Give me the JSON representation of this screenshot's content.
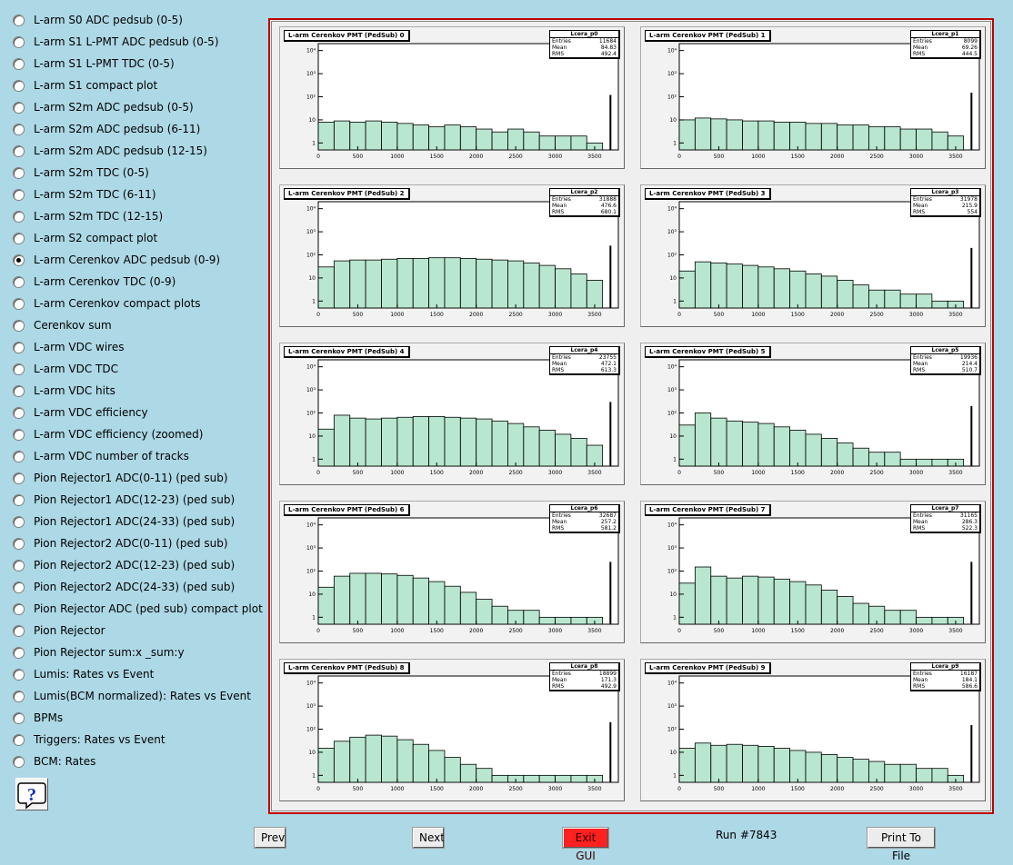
{
  "menu": {
    "selected_index": 11,
    "items": [
      "L-arm S0 ADC pedsub (0-5)",
      "L-arm S1 L-PMT ADC pedsub (0-5)",
      "L-arm S1 L-PMT TDC (0-5)",
      "L-arm S1 compact plot",
      "L-arm S2m ADC pedsub (0-5)",
      "L-arm S2m ADC pedsub (6-11)",
      "L-arm S2m ADC pedsub (12-15)",
      "L-arm S2m TDC (0-5)",
      "L-arm S2m TDC (6-11)",
      "L-arm S2m TDC (12-15)",
      "L-arm S2 compact plot",
      "L-arm Cerenkov ADC pedsub (0-9)",
      "L-arm Cerenkov TDC (0-9)",
      "L-arm Cerenkov compact plots",
      "Cerenkov sum",
      "L-arm VDC wires",
      "L-arm VDC TDC",
      "L-arm VDC hits",
      "L-arm VDC efficiency",
      "L-arm VDC efficiency (zoomed)",
      "L-arm VDC number of tracks",
      "Pion Rejector1 ADC(0-11) (ped sub)",
      "Pion Rejector1 ADC(12-23) (ped sub)",
      "Pion Rejector1 ADC(24-33) (ped sub)",
      "Pion Rejector2 ADC(0-11) (ped sub)",
      "Pion Rejector2 ADC(12-23) (ped sub)",
      "Pion Rejector2 ADC(24-33) (ped sub)",
      "Pion Rejector ADC (ped sub) compact plot",
      "Pion Rejector",
      "Pion Rejector sum:x _sum:y",
      "Lumis: Rates vs Event",
      "Lumis(BCM normalized): Rates vs Event",
      "BPMs",
      "Triggers: Rates vs Event",
      "BCM: Rates"
    ]
  },
  "icons": {
    "help": "help-question-icon"
  },
  "buttons": {
    "prev": "Prev",
    "next": "Next",
    "exit": "Exit GUI",
    "print": "Print To File"
  },
  "run_label": "Run #7843",
  "colors": {
    "canvas_border": "#c00000",
    "exit_button": "#ff2020",
    "fill": "#7fd1a8",
    "background": "#add8e6"
  },
  "chart_data": [
    {
      "type": "bar",
      "title": "L-arm Cerenkov PMT (PedSub) 0",
      "stats_name": "Lcera_p0",
      "stats": {
        "Entries": "11684",
        "Mean": "84.83",
        "RMS": "492.4"
      },
      "x_ticks": [
        0,
        500,
        1000,
        1500,
        2000,
        2500,
        3000,
        3500
      ],
      "y_ticks": [
        "1",
        "10",
        "10²",
        "10³",
        "10⁴"
      ],
      "y_scale": "log",
      "ylim": [
        0.5,
        20000
      ],
      "xlim": [
        0,
        3800
      ],
      "x": [
        100,
        300,
        500,
        700,
        900,
        1100,
        1300,
        1500,
        1700,
        1900,
        2100,
        2300,
        2500,
        2700,
        2900,
        3100,
        3300,
        3500,
        3700
      ],
      "values": [
        8,
        9,
        8,
        9,
        8,
        7,
        6,
        5,
        6,
        5,
        4,
        3,
        4,
        3,
        2,
        2,
        2,
        1,
        120
      ]
    },
    {
      "type": "bar",
      "title": "L-arm Cerenkov PMT (PedSub) 1",
      "stats_name": "Lcera_p1",
      "stats": {
        "Entries": "8099",
        "Mean": "69.26",
        "RMS": "444.5"
      },
      "x_ticks": [
        0,
        500,
        1000,
        1500,
        2000,
        2500,
        3000,
        3500
      ],
      "y_ticks": [
        "1",
        "10",
        "10²",
        "10³",
        "10⁴"
      ],
      "y_scale": "log",
      "ylim": [
        0.5,
        20000
      ],
      "xlim": [
        0,
        3800
      ],
      "x": [
        100,
        300,
        500,
        700,
        900,
        1100,
        1300,
        1500,
        1700,
        1900,
        2100,
        2300,
        2500,
        2700,
        2900,
        3100,
        3300,
        3500,
        3700
      ],
      "values": [
        10,
        12,
        11,
        10,
        9,
        9,
        8,
        8,
        7,
        7,
        6,
        6,
        5,
        5,
        4,
        4,
        3,
        2,
        150
      ]
    },
    {
      "type": "bar",
      "title": "L-arm Cerenkov PMT (PedSub) 2",
      "stats_name": "Lcera_p2",
      "stats": {
        "Entries": "31888",
        "Mean": "476.6",
        "RMS": "680.1"
      },
      "x_ticks": [
        0,
        500,
        1000,
        1500,
        2000,
        2500,
        3000,
        3500
      ],
      "y_ticks": [
        "1",
        "10",
        "10²",
        "10³",
        "10⁴"
      ],
      "y_scale": "log",
      "ylim": [
        0.5,
        20000
      ],
      "xlim": [
        0,
        3800
      ],
      "x": [
        100,
        300,
        500,
        700,
        900,
        1100,
        1300,
        1500,
        1700,
        1900,
        2100,
        2300,
        2500,
        2700,
        2900,
        3100,
        3300,
        3500,
        3700
      ],
      "values": [
        30,
        55,
        60,
        60,
        65,
        70,
        70,
        75,
        75,
        70,
        65,
        60,
        55,
        45,
        35,
        25,
        15,
        8,
        250
      ]
    },
    {
      "type": "bar",
      "title": "L-arm Cerenkov PMT (PedSub) 3",
      "stats_name": "Lcera_p3",
      "stats": {
        "Entries": "31978",
        "Mean": "215.9",
        "RMS": "554"
      },
      "x_ticks": [
        0,
        500,
        1000,
        1500,
        2000,
        2500,
        3000,
        3500
      ],
      "y_ticks": [
        "1",
        "10",
        "10²",
        "10³",
        "10⁴"
      ],
      "y_scale": "log",
      "ylim": [
        0.5,
        20000
      ],
      "xlim": [
        0,
        3800
      ],
      "x": [
        100,
        300,
        500,
        700,
        900,
        1100,
        1300,
        1500,
        1700,
        1900,
        2100,
        2300,
        2500,
        2700,
        2900,
        3100,
        3300,
        3500,
        3700
      ],
      "values": [
        20,
        50,
        45,
        40,
        35,
        30,
        25,
        20,
        15,
        12,
        8,
        5,
        3,
        3,
        2,
        2,
        1,
        1,
        200
      ]
    },
    {
      "type": "bar",
      "title": "L-arm Cerenkov PMT (PedSub) 4",
      "stats_name": "Lcera_p4",
      "stats": {
        "Entries": "23755",
        "Mean": "472.1",
        "RMS": "613.3"
      },
      "x_ticks": [
        0,
        500,
        1000,
        1500,
        2000,
        2500,
        3000,
        3500
      ],
      "y_ticks": [
        "1",
        "10",
        "10²",
        "10³",
        "10⁴"
      ],
      "y_scale": "log",
      "ylim": [
        0.5,
        20000
      ],
      "xlim": [
        0,
        3800
      ],
      "x": [
        100,
        300,
        500,
        700,
        900,
        1100,
        1300,
        1500,
        1700,
        1900,
        2100,
        2300,
        2500,
        2700,
        2900,
        3100,
        3300,
        3500,
        3700
      ],
      "values": [
        20,
        80,
        60,
        55,
        60,
        65,
        70,
        70,
        65,
        60,
        55,
        45,
        35,
        25,
        18,
        12,
        8,
        4,
        300
      ]
    },
    {
      "type": "bar",
      "title": "L-arm Cerenkov PMT (PedSub) 5",
      "stats_name": "Lcera_p5",
      "stats": {
        "Entries": "19936",
        "Mean": "214.4",
        "RMS": "510.7"
      },
      "x_ticks": [
        0,
        500,
        1000,
        1500,
        2000,
        2500,
        3000,
        3500
      ],
      "y_ticks": [
        "1",
        "10",
        "10²",
        "10³",
        "10⁴"
      ],
      "y_scale": "log",
      "ylim": [
        0.5,
        20000
      ],
      "xlim": [
        0,
        3800
      ],
      "x": [
        100,
        300,
        500,
        700,
        900,
        1100,
        1300,
        1500,
        1700,
        1900,
        2100,
        2300,
        2500,
        2700,
        2900,
        3100,
        3300,
        3500,
        3700
      ],
      "values": [
        30,
        100,
        60,
        45,
        40,
        35,
        25,
        18,
        12,
        8,
        5,
        3,
        2,
        2,
        1,
        1,
        1,
        1,
        200
      ]
    },
    {
      "type": "bar",
      "title": "L-arm Cerenkov PMT (PedSub) 6",
      "stats_name": "Lcera_p6",
      "stats": {
        "Entries": "32687",
        "Mean": "257.2",
        "RMS": "581.2"
      },
      "x_ticks": [
        0,
        500,
        1000,
        1500,
        2000,
        2500,
        3000,
        3500
      ],
      "y_ticks": [
        "1",
        "10",
        "10²",
        "10³",
        "10⁴"
      ],
      "y_scale": "log",
      "ylim": [
        0.5,
        20000
      ],
      "xlim": [
        0,
        3800
      ],
      "x": [
        100,
        300,
        500,
        700,
        900,
        1100,
        1300,
        1500,
        1700,
        1900,
        2100,
        2300,
        2500,
        2700,
        2900,
        3100,
        3300,
        3500,
        3700
      ],
      "values": [
        20,
        60,
        80,
        80,
        75,
        65,
        50,
        35,
        22,
        12,
        6,
        3,
        2,
        2,
        1,
        1,
        1,
        1,
        250
      ]
    },
    {
      "type": "bar",
      "title": "L-arm Cerenkov PMT (PedSub) 7",
      "stats_name": "Lcera_p7",
      "stats": {
        "Entries": "31165",
        "Mean": "286.3",
        "RMS": "522.3"
      },
      "x_ticks": [
        0,
        500,
        1000,
        1500,
        2000,
        2500,
        3000,
        3500
      ],
      "y_ticks": [
        "1",
        "10",
        "10²",
        "10³",
        "10⁴"
      ],
      "y_scale": "log",
      "ylim": [
        0.5,
        20000
      ],
      "xlim": [
        0,
        3800
      ],
      "x": [
        100,
        300,
        500,
        700,
        900,
        1100,
        1300,
        1500,
        1700,
        1900,
        2100,
        2300,
        2500,
        2700,
        2900,
        3100,
        3300,
        3500,
        3700
      ],
      "values": [
        30,
        150,
        60,
        50,
        60,
        55,
        45,
        35,
        25,
        15,
        8,
        4,
        3,
        2,
        2,
        1,
        1,
        1,
        250
      ]
    },
    {
      "type": "bar",
      "title": "L-arm Cerenkov PMT (PedSub) 8",
      "stats_name": "Lcera_p8",
      "stats": {
        "Entries": "18899",
        "Mean": "171.3",
        "RMS": "492.9"
      },
      "x_ticks": [
        0,
        500,
        1000,
        1500,
        2000,
        2500,
        3000,
        3500
      ],
      "y_ticks": [
        "1",
        "10",
        "10²",
        "10³",
        "10⁴"
      ],
      "y_scale": "log",
      "ylim": [
        0.5,
        20000
      ],
      "xlim": [
        0,
        3800
      ],
      "x": [
        100,
        300,
        500,
        700,
        900,
        1100,
        1300,
        1500,
        1700,
        1900,
        2100,
        2300,
        2500,
        2700,
        2900,
        3100,
        3300,
        3500,
        3700
      ],
      "values": [
        15,
        30,
        45,
        55,
        50,
        35,
        22,
        12,
        6,
        3,
        2,
        1,
        1,
        1,
        1,
        1,
        1,
        1,
        200
      ]
    },
    {
      "type": "bar",
      "title": "L-arm Cerenkov PMT (PedSub) 9",
      "stats_name": "Lcera_p9",
      "stats": {
        "Entries": "16187",
        "Mean": "184.1",
        "RMS": "586.6"
      },
      "x_ticks": [
        0,
        500,
        1000,
        1500,
        2000,
        2500,
        3000,
        3500
      ],
      "y_ticks": [
        "1",
        "10",
        "10²",
        "10³",
        "10⁴"
      ],
      "y_scale": "log",
      "ylim": [
        0.5,
        20000
      ],
      "xlim": [
        0,
        3800
      ],
      "x": [
        100,
        300,
        500,
        700,
        900,
        1100,
        1300,
        1500,
        1700,
        1900,
        2100,
        2300,
        2500,
        2700,
        2900,
        3100,
        3300,
        3500,
        3700
      ],
      "values": [
        15,
        25,
        20,
        22,
        20,
        18,
        15,
        12,
        10,
        8,
        6,
        5,
        4,
        3,
        3,
        2,
        2,
        1,
        150
      ]
    }
  ]
}
